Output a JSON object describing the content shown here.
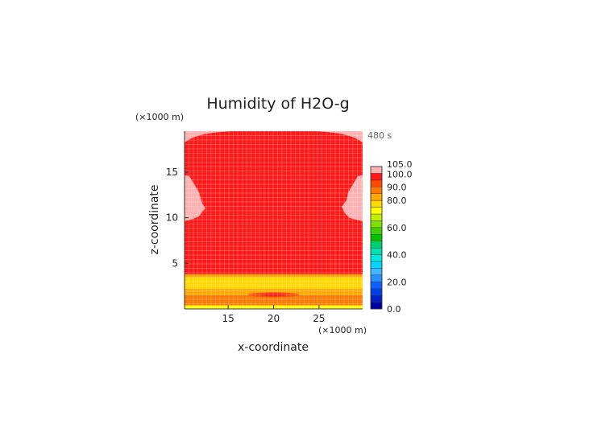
{
  "chart_data": {
    "type": "heatmap",
    "title": "Humidity of H2O-g",
    "time_label": "480 s",
    "xlabel": "x-coordinate",
    "ylabel": "z-coordinate",
    "x_unit": "(×1000 m)",
    "y_unit": "(×1000 m)",
    "xlim": [
      10.2,
      29.8
    ],
    "ylim": [
      0,
      19.5
    ],
    "x_ticks": [
      15,
      20,
      25
    ],
    "y_ticks": [
      5,
      10,
      15
    ],
    "x_tick_labels": [
      "15",
      "20",
      "25"
    ],
    "y_tick_labels": [
      "5",
      "10",
      "15"
    ],
    "colorbar": {
      "vmin": 0,
      "vmax": 105,
      "step": 5,
      "labeled_values": [
        0,
        20,
        40,
        60,
        80,
        90,
        100,
        105
      ],
      "labels": [
        "0.0",
        "20.0",
        "40.0",
        "60.0",
        "80.0",
        "90.0",
        "100.0",
        "105.0"
      ],
      "colors": [
        "#0000a0",
        "#0020c8",
        "#0040e8",
        "#1060ff",
        "#2890ff",
        "#40b8ff",
        "#00d8ff",
        "#00e8e0",
        "#00e0b0",
        "#00d070",
        "#00c000",
        "#40d000",
        "#80e000",
        "#c0f000",
        "#ffff00",
        "#ffd800",
        "#ffa800",
        "#ff7800",
        "#ff4800",
        "#ff1818",
        "#ffb0b0"
      ]
    },
    "regions": {
      "background_value": 98,
      "top_edge_value": 100.5,
      "side_lobe_value": 100.5,
      "surface_layers": [
        {
          "z_range": [
            3.5,
            3.8
          ],
          "value": 80
        },
        {
          "z_range": [
            3.0,
            3.5
          ],
          "value": 75
        },
        {
          "z_range": [
            2.2,
            3.0
          ],
          "value": 77
        },
        {
          "z_range": [
            1.5,
            2.2
          ],
          "value": 84
        },
        {
          "z_range": [
            0.4,
            1.5
          ],
          "value": 88
        },
        {
          "z_range": [
            0.0,
            0.4
          ],
          "value": 72
        }
      ],
      "core_value": 97,
      "core_center": [
        20,
        1.55
      ]
    }
  }
}
